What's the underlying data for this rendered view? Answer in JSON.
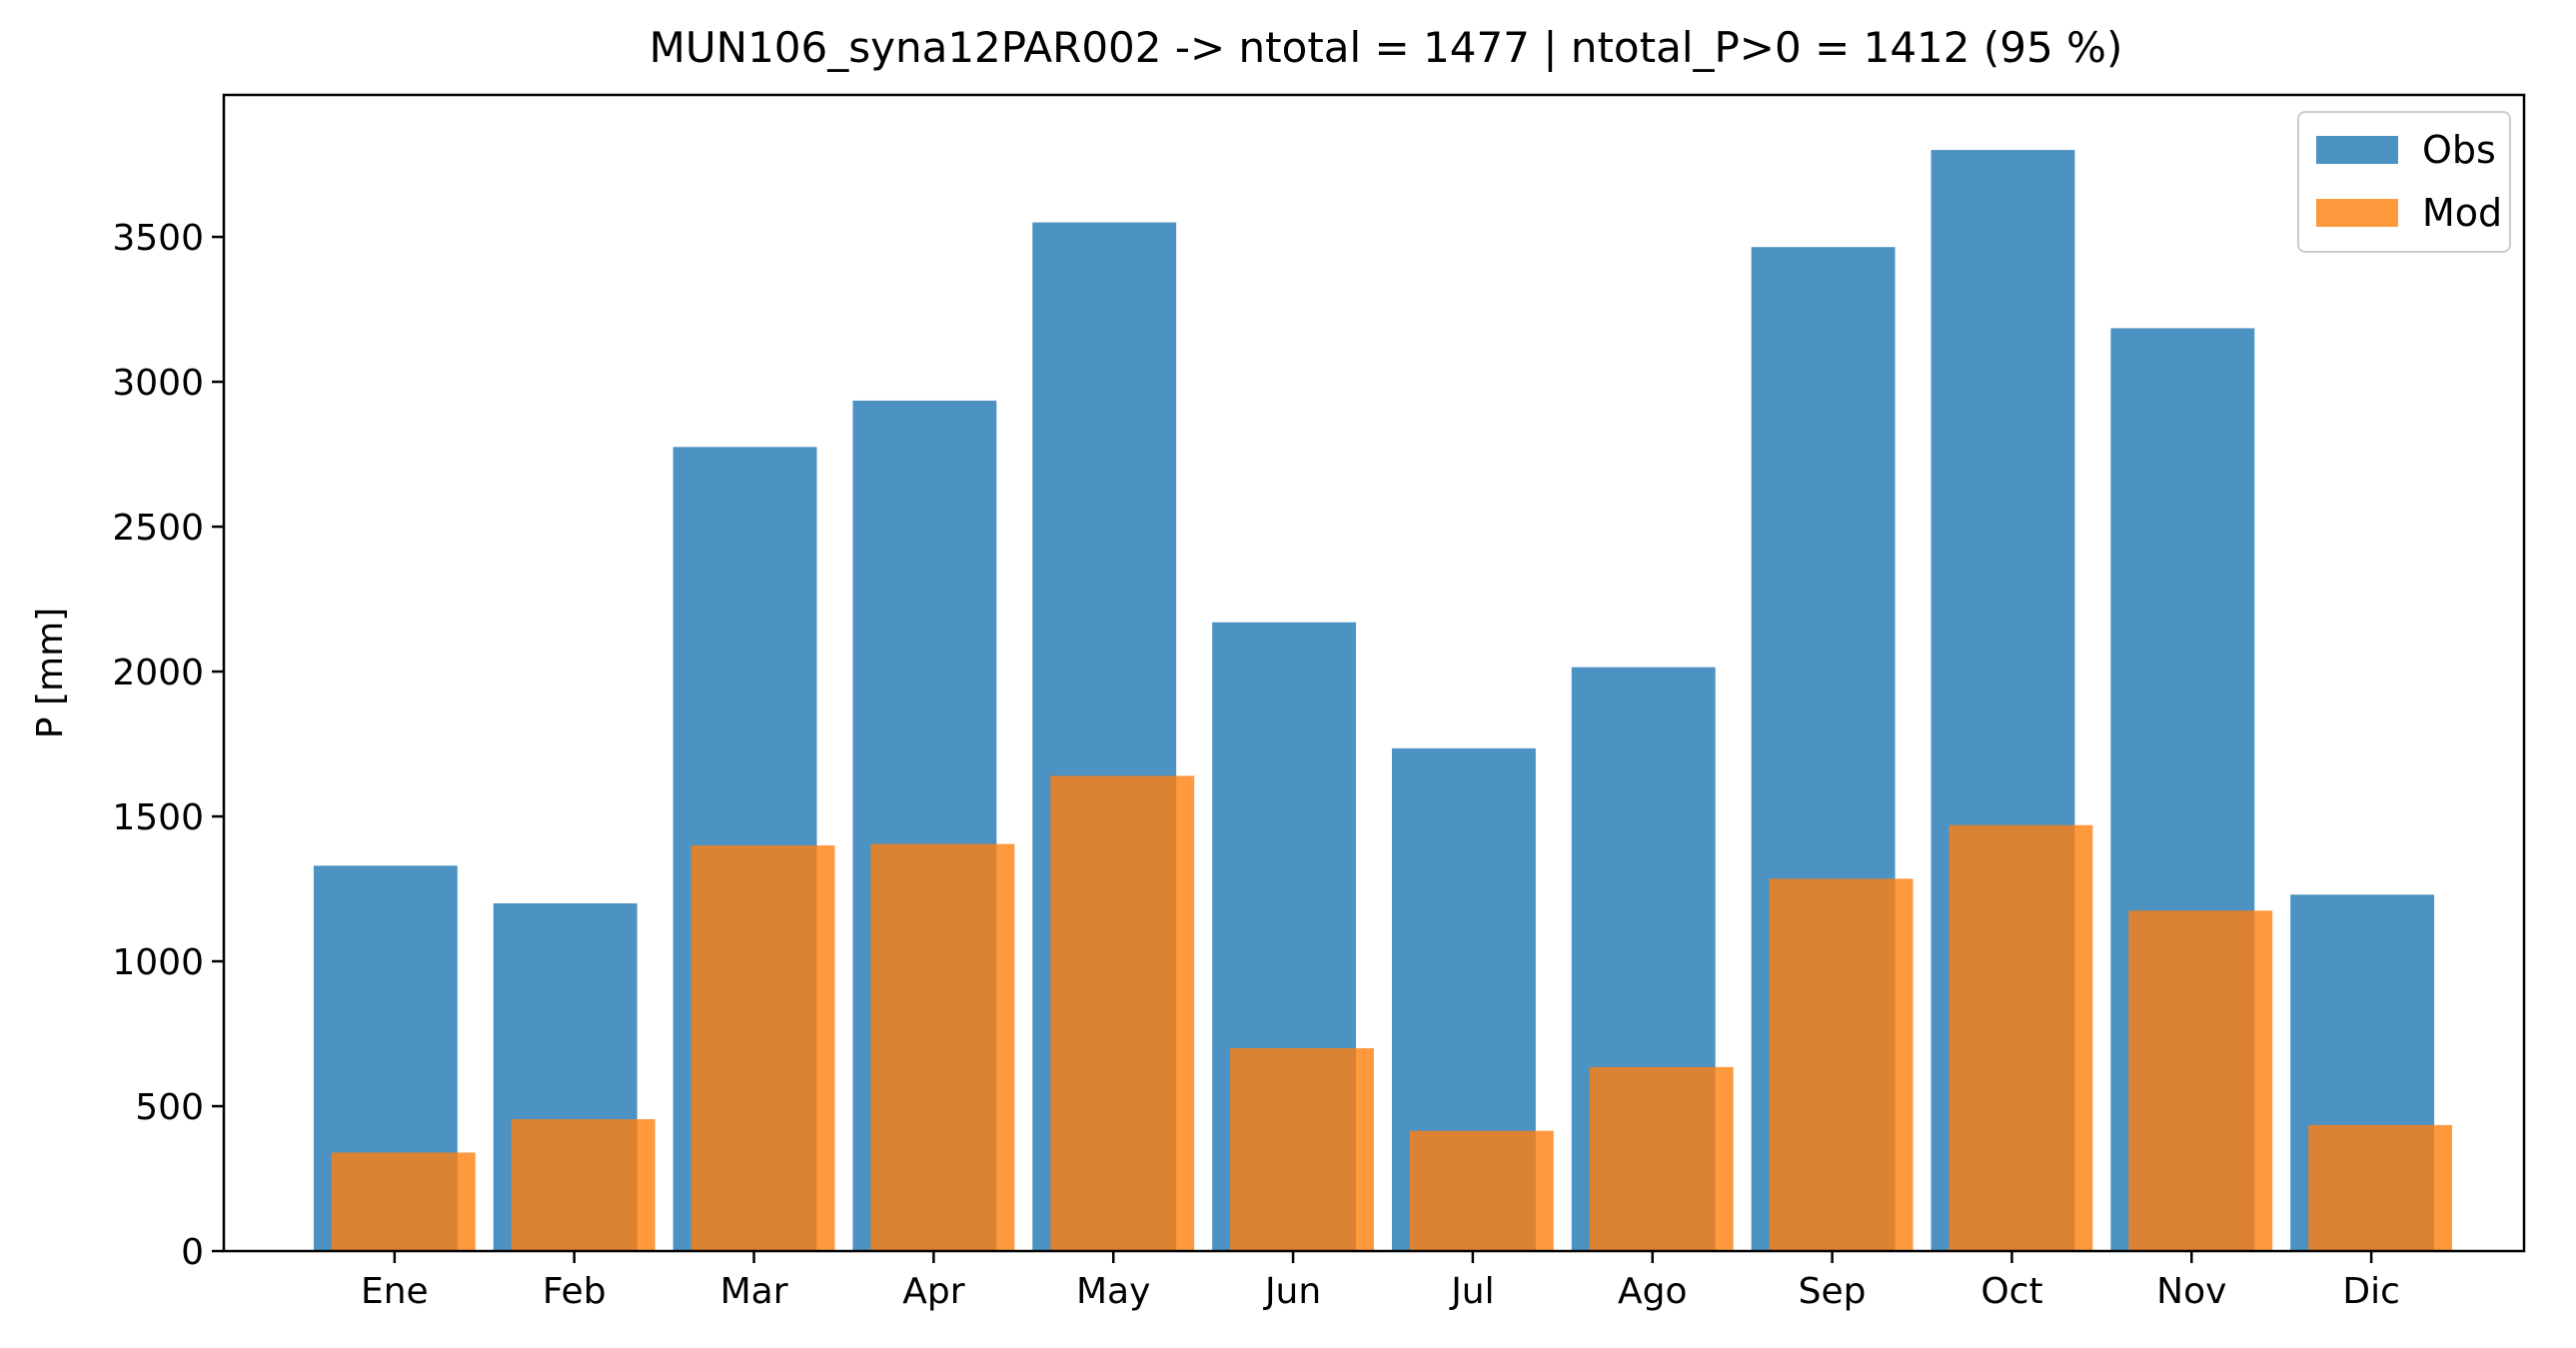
{
  "chart_data": {
    "type": "bar",
    "title": "MUN106_syna12PAR002 -> ntotal = 1477 | ntotal_P>0 = 1412 (95 %)",
    "xlabel": "",
    "ylabel": "P [mm]",
    "categories": [
      "Ene",
      "Feb",
      "Mar",
      "Apr",
      "May",
      "Jun",
      "Jul",
      "Ago",
      "Sep",
      "Oct",
      "Nov",
      "Dic"
    ],
    "series": [
      {
        "name": "Obs",
        "color": "#1f77b4",
        "opacity": 0.8,
        "values": [
          1330,
          1200,
          2775,
          2935,
          3550,
          2170,
          1735,
          2015,
          3465,
          3800,
          3185,
          1230
        ]
      },
      {
        "name": "Mod",
        "color": "#ff7f0e",
        "opacity": 0.8,
        "values": [
          340,
          455,
          1400,
          1405,
          1640,
          700,
          415,
          635,
          1285,
          1470,
          1175,
          435
        ]
      }
    ],
    "yticks": [
      0,
      500,
      1000,
      1500,
      2000,
      2500,
      3000,
      3500
    ],
    "ylim": [
      0,
      3990
    ],
    "grid": false,
    "legend_position": "top-right"
  }
}
